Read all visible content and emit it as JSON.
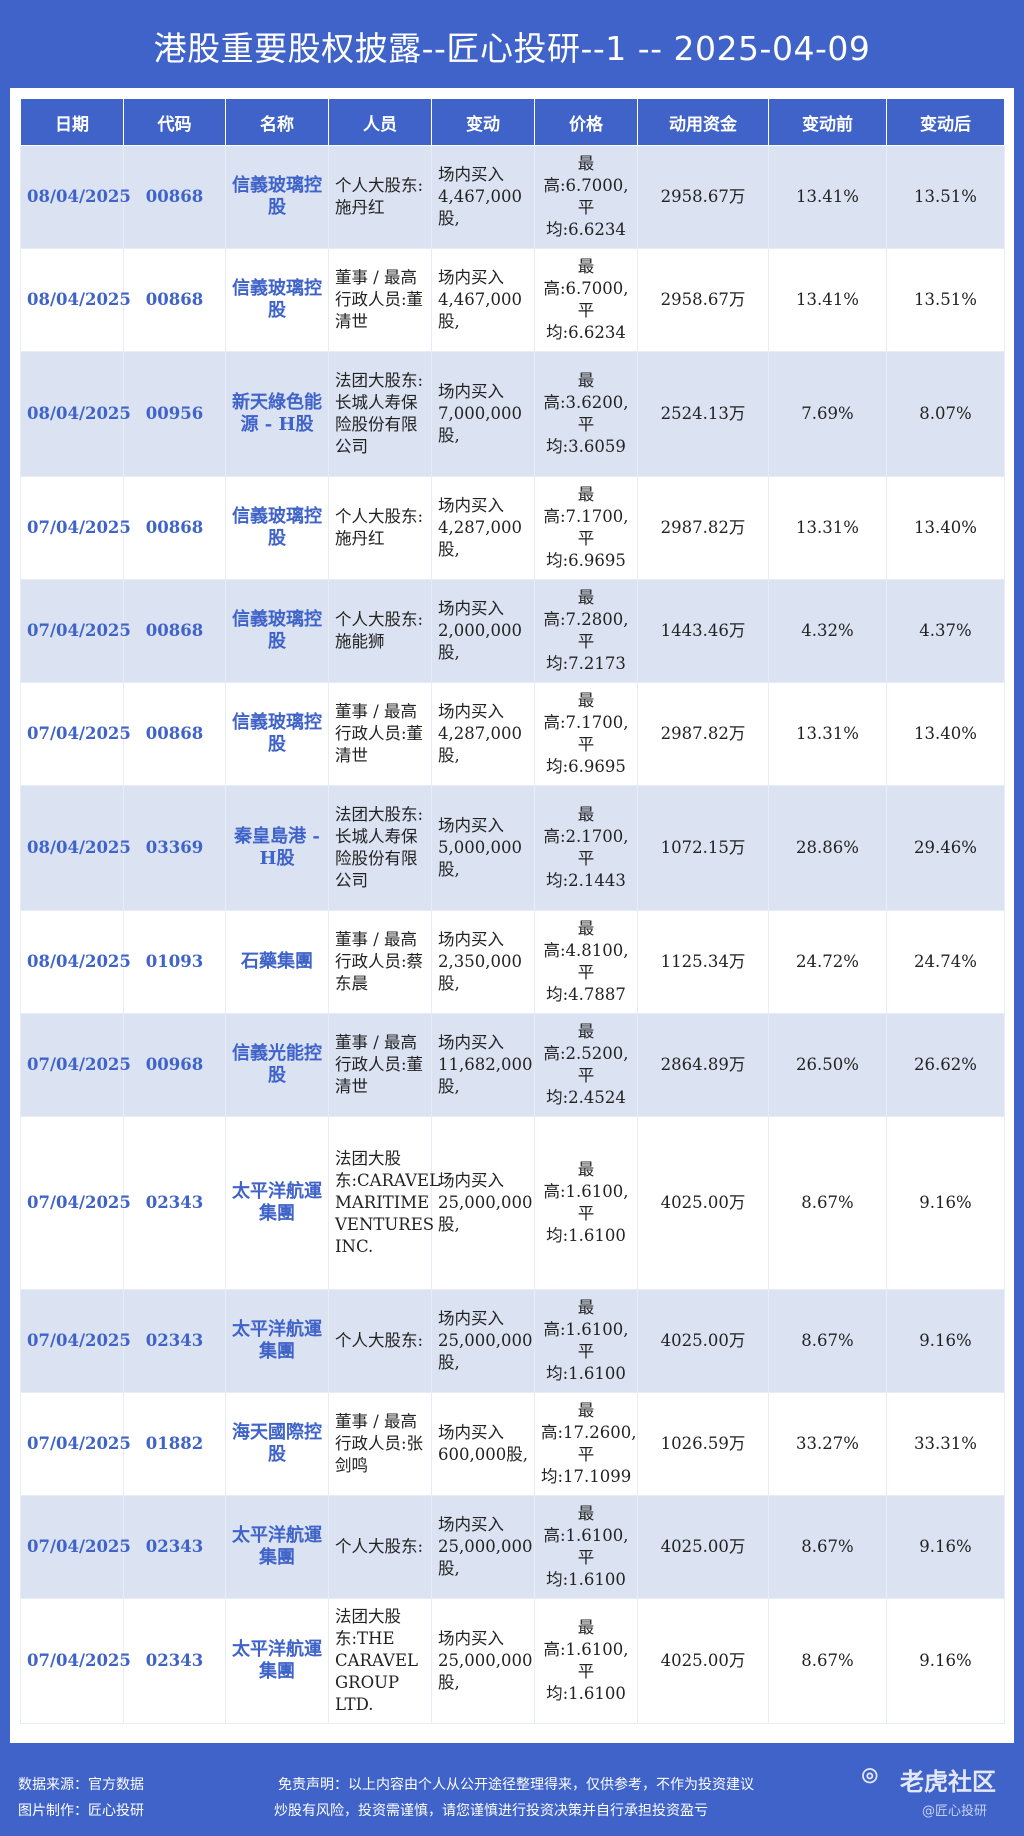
{
  "title": "港股重要股权披露--匠心投研--1 -- 2025-04-09",
  "columns": [
    "日期",
    "代码",
    "名称",
    "人员",
    "变动",
    "价格",
    "动用资金",
    "变动前",
    "变动后"
  ],
  "rows": [
    {
      "date": "08/04/2025",
      "code": "00868",
      "name": "信義玻璃控股",
      "person": "个人大股东:施丹红",
      "change": "场内买入4,467,000股,",
      "price": "最高:6.7000,平均:6.6234",
      "funds": "2958.67万",
      "before": "13.41%",
      "after": "13.51%"
    },
    {
      "date": "08/04/2025",
      "code": "00868",
      "name": "信義玻璃控股",
      "person": "董事 / 最高行政人员:董清世",
      "change": "场内买入4,467,000股,",
      "price": "最高:6.7000,平均:6.6234",
      "funds": "2958.67万",
      "before": "13.41%",
      "after": "13.51%"
    },
    {
      "date": "08/04/2025",
      "code": "00956",
      "name": "新天綠色能源 - H股",
      "person": "法团大股东:长城人寿保险股份有限公司",
      "change": "场内买入7,000,000股,",
      "price": "最高:3.6200,平均:3.6059",
      "funds": "2524.13万",
      "before": "7.69%",
      "after": "8.07%"
    },
    {
      "date": "07/04/2025",
      "code": "00868",
      "name": "信義玻璃控股",
      "person": "个人大股东:施丹红",
      "change": "场内买入4,287,000股,",
      "price": "最高:7.1700,平均:6.9695",
      "funds": "2987.82万",
      "before": "13.31%",
      "after": "13.40%"
    },
    {
      "date": "07/04/2025",
      "code": "00868",
      "name": "信義玻璃控股",
      "person": "个人大股东:施能狮",
      "change": "场内买入2,000,000股,",
      "price": "最高:7.2800,平均:7.2173",
      "funds": "1443.46万",
      "before": "4.32%",
      "after": "4.37%"
    },
    {
      "date": "07/04/2025",
      "code": "00868",
      "name": "信義玻璃控股",
      "person": "董事 / 最高行政人员:董清世",
      "change": "场内买入4,287,000股,",
      "price": "最高:7.1700,平均:6.9695",
      "funds": "2987.82万",
      "before": "13.31%",
      "after": "13.40%"
    },
    {
      "date": "08/04/2025",
      "code": "03369",
      "name": "秦皇島港 - H股",
      "person": "法团大股东:长城人寿保险股份有限公司",
      "change": "场内买入5,000,000股,",
      "price": "最高:2.1700,平均:2.1443",
      "funds": "1072.15万",
      "before": "28.86%",
      "after": "29.46%"
    },
    {
      "date": "08/04/2025",
      "code": "01093",
      "name": "石藥集團",
      "person": "董事 / 最高行政人员:蔡东晨",
      "change": "场内买入2,350,000股,",
      "price": "最高:4.8100,平均:4.7887",
      "funds": "1125.34万",
      "before": "24.72%",
      "after": "24.74%"
    },
    {
      "date": "07/04/2025",
      "code": "00968",
      "name": "信義光能控股",
      "person": "董事 / 最高行政人员:董清世",
      "change": "场内买入11,682,000股,",
      "price": "最高:2.5200,平均:2.4524",
      "funds": "2864.89万",
      "before": "26.50%",
      "after": "26.62%"
    },
    {
      "date": "07/04/2025",
      "code": "02343",
      "name": "太平洋航運集團",
      "person": "法团大股东:CARAVEL MARITIME VENTURES INC.",
      "change": "场内买入25,000,000股,",
      "price": "最高:1.6100,平均:1.6100",
      "funds": "4025.00万",
      "before": "8.67%",
      "after": "9.16%"
    },
    {
      "date": "07/04/2025",
      "code": "02343",
      "name": "太平洋航運集團",
      "person": "个人大股东:",
      "change": "场内买入25,000,000股,",
      "price": "最高:1.6100,平均:1.6100",
      "funds": "4025.00万",
      "before": "8.67%",
      "after": "9.16%"
    },
    {
      "date": "07/04/2025",
      "code": "01882",
      "name": "海天國際控股",
      "person": "董事 / 最高行政人员:张剑鸣",
      "change": "场内买入600,000股,",
      "price": "最高:17.2600,平均:17.1099",
      "funds": "1026.59万",
      "before": "33.27%",
      "after": "33.31%"
    },
    {
      "date": "07/04/2025",
      "code": "02343",
      "name": "太平洋航運集團",
      "person": "个人大股东:",
      "change": "场内买入25,000,000股,",
      "price": "最高:1.6100,平均:1.6100",
      "funds": "4025.00万",
      "before": "8.67%",
      "after": "9.16%"
    },
    {
      "date": "07/04/2025",
      "code": "02343",
      "name": "太平洋航運集團",
      "person": "法团大股东:THE CARAVEL GROUP LTD.",
      "change": "场内买入25,000,000股,",
      "price": "最高:1.6100,平均:1.6100",
      "funds": "4025.00万",
      "before": "8.67%",
      "after": "9.16%"
    }
  ],
  "footer": {
    "source": "数据来源：官方数据",
    "made_by": "图片制作：匠心投研",
    "disclaimer": "免责声明：以上内容由个人从公开途径整理得来，仅供参考，不作为投资建议",
    "risk": "炒股有风险，投资需谨慎，请您谨慎进行投资决策并自行承担投资盈亏"
  },
  "watermark": {
    "icon": "tiger-logo-icon",
    "text": "老虎社区",
    "sub": "@匠心投研"
  }
}
